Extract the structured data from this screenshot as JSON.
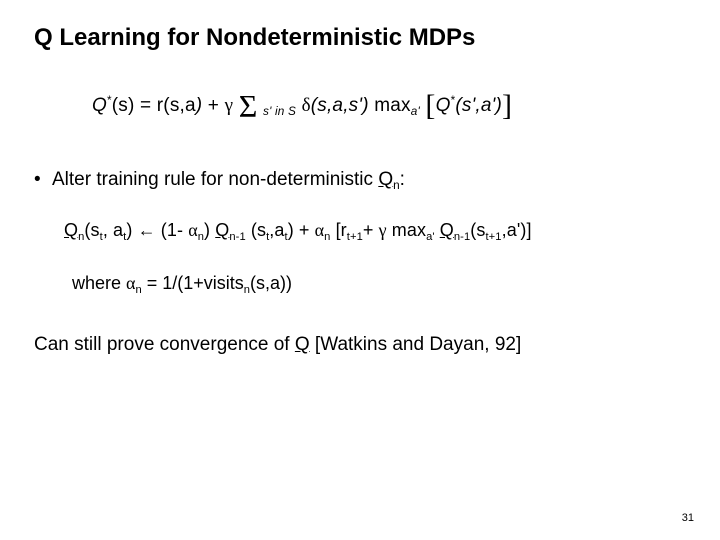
{
  "title": "Q Learning for Nondeterministic MDPs",
  "eq": {
    "Q": "Q",
    "star": "*",
    "s_arg": "(s)",
    "eq_r": " = r(s,a",
    "plus": " + ",
    "gamma": "γ",
    "sigma": "Σ",
    "sum_sub": "s' in S",
    "delta": "δ",
    "delta_args": "(s,a,s') ",
    "max": "max",
    "max_sub": "a'",
    "lb": "[",
    "Q2": "Q",
    "q2_args": "(s',a')",
    "rb": "]",
    "close_paren": ")"
  },
  "bullet": {
    "pre": "Alter training rule for non-deterministic ",
    "Q": "Q",
    "sub_n": "n",
    "colon": ":"
  },
  "rule": {
    "Q": "Q",
    "n": "n",
    "args1": "(s",
    "t": "t",
    "comma_a": ", a",
    "close1": ") ",
    "arrow": "←",
    "open_1m": " (1- ",
    "alpha": "α",
    "close_1m": ") ",
    "nminus1": "n-1",
    "args2": " (s",
    "comma_a2": ",a",
    "plus": ") + ",
    "open_br": " [r",
    "tplus1": "t+1",
    "plus2": "+ ",
    "gamma": "γ",
    "max": " max",
    "aprime": "a'",
    "args3": "(s",
    "comma_ap": ",a')]"
  },
  "where": {
    "pre": "where ",
    "alpha": "α",
    "n": "n",
    "mid": " = 1/(1+visits",
    "post": "(s,a))"
  },
  "conv": {
    "pre": "Can still prove convergence of ",
    "Q": "Q",
    "cite": " [Watkins and Dayan, 92]"
  },
  "pagenum": "31"
}
